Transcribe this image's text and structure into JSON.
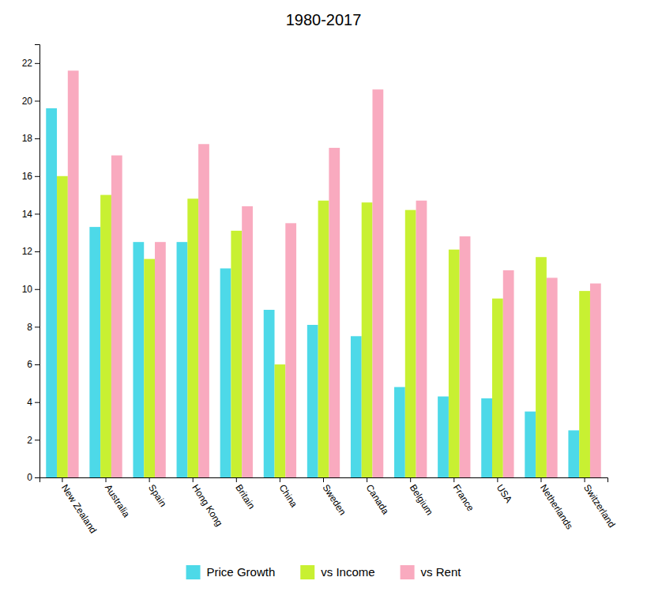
{
  "chart_data": {
    "type": "bar",
    "title": "1980-2017",
    "categories": [
      "New Zealand",
      "Australia",
      "Spain",
      "Hong Kong",
      "Britain",
      "China",
      "Sweden",
      "Canada",
      "Belgium",
      "France",
      "USA",
      "Netherlands",
      "Switzerland"
    ],
    "series": [
      {
        "name": "Price Growth",
        "color": "#4DD9E8",
        "values": [
          19.6,
          13.3,
          12.5,
          12.5,
          11.1,
          8.9,
          8.1,
          7.5,
          4.8,
          4.3,
          4.2,
          3.5,
          2.5
        ]
      },
      {
        "name": "vs Income",
        "color": "#C8F032",
        "values": [
          16.0,
          15.0,
          11.6,
          14.8,
          13.1,
          6.0,
          14.7,
          14.6,
          14.2,
          12.1,
          9.5,
          11.7,
          9.9
        ]
      },
      {
        "name": "vs Rent",
        "color": "#F9AABF",
        "values": [
          21.6,
          17.1,
          12.5,
          17.7,
          14.4,
          13.5,
          17.5,
          20.6,
          14.7,
          12.8,
          11.0,
          10.6,
          10.3
        ]
      }
    ],
    "ylim": [
      0,
      23
    ],
    "yticks": [
      0,
      2,
      4,
      6,
      8,
      10,
      12,
      14,
      16,
      18,
      20,
      22
    ],
    "grid": false,
    "legend": "bottom"
  }
}
